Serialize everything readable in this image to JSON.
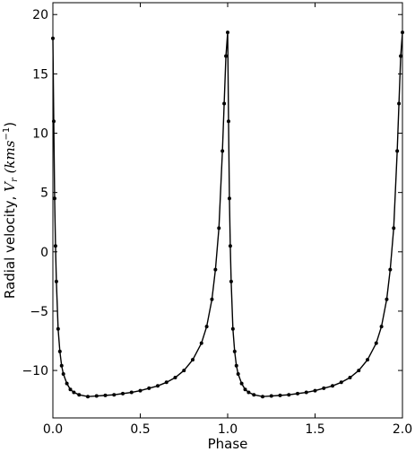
{
  "chart_data": {
    "type": "line",
    "title": "",
    "xlabel": "Phase",
    "ylabel": {
      "text": "Radial velocity, ",
      "symbol": "V",
      "subscript": "r",
      "units_open": " (kms",
      "units_exp": "−1",
      "units_close": ")"
    },
    "xlim": [
      0.0,
      2.0
    ],
    "ylim": [
      -14,
      21
    ],
    "xticks": [
      0.0,
      0.5,
      1.0,
      1.5,
      2.0
    ],
    "xtick_labels": [
      "0.0",
      "0.5",
      "1.0",
      "1.5",
      "2.0"
    ],
    "yticks": [
      -10,
      -5,
      0,
      5,
      10,
      15,
      20
    ],
    "ytick_labels": [
      "−10",
      "−5",
      "0",
      "5",
      "10",
      "15",
      "20"
    ],
    "grid": false,
    "series": [
      {
        "marker": "dot",
        "color": "#000000",
        "x": [
          0.0,
          0.005,
          0.01,
          0.015,
          0.02,
          0.03,
          0.04,
          0.05,
          0.06,
          0.08,
          0.1,
          0.12,
          0.15,
          0.2,
          0.25,
          0.3,
          0.35,
          0.4,
          0.45,
          0.5,
          0.55,
          0.6,
          0.65,
          0.7,
          0.75,
          0.8,
          0.85,
          0.88,
          0.91,
          0.93,
          0.95,
          0.97,
          0.98,
          0.99,
          1.0,
          1.005,
          1.01,
          1.015,
          1.02,
          1.03,
          1.04,
          1.05,
          1.06,
          1.08,
          1.1,
          1.12,
          1.15,
          1.2,
          1.25,
          1.3,
          1.35,
          1.4,
          1.45,
          1.5,
          1.55,
          1.6,
          1.65,
          1.7,
          1.75,
          1.8,
          1.85,
          1.88,
          1.91,
          1.93,
          1.95,
          1.97,
          1.98,
          1.99,
          2.0
        ],
        "y": [
          18.0,
          11.0,
          4.5,
          0.5,
          -2.5,
          -6.5,
          -8.4,
          -9.6,
          -10.3,
          -11.1,
          -11.6,
          -11.85,
          -12.05,
          -12.2,
          -12.15,
          -12.1,
          -12.05,
          -11.95,
          -11.85,
          -11.7,
          -11.5,
          -11.3,
          -11.0,
          -10.6,
          -10.0,
          -9.1,
          -7.7,
          -6.3,
          -4.0,
          -1.5,
          2.0,
          8.5,
          12.5,
          16.5,
          18.5,
          11.0,
          4.5,
          0.5,
          -2.5,
          -6.5,
          -8.4,
          -9.6,
          -10.3,
          -11.1,
          -11.6,
          -11.85,
          -12.05,
          -12.2,
          -12.15,
          -12.1,
          -12.05,
          -11.95,
          -11.85,
          -11.7,
          -11.5,
          -11.3,
          -11.0,
          -10.6,
          -10.0,
          -9.1,
          -7.7,
          -6.3,
          -4.0,
          -1.5,
          2.0,
          8.5,
          12.5,
          16.5,
          18.5
        ]
      }
    ]
  }
}
